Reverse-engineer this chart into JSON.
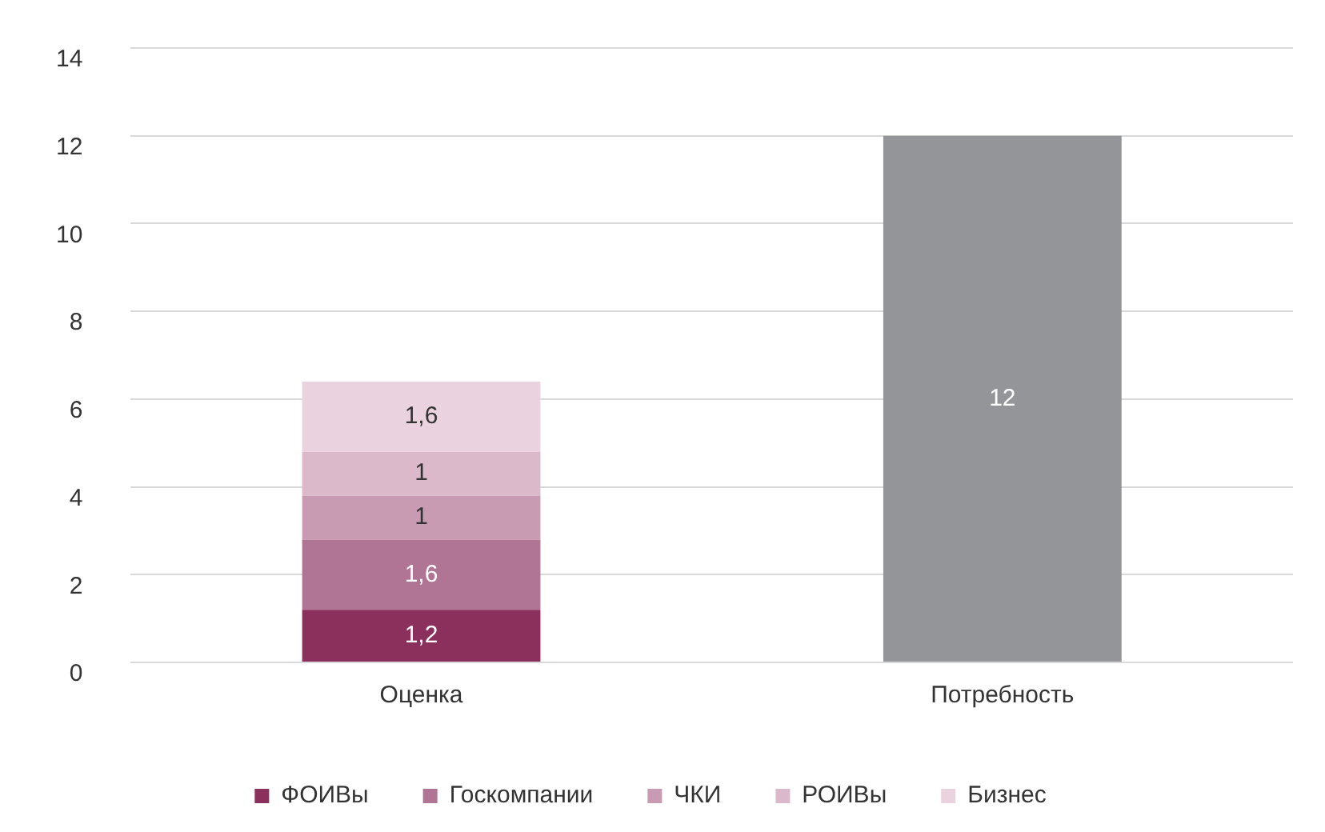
{
  "chart_data": {
    "type": "bar",
    "stacked": true,
    "categories": [
      "Оценка",
      "Потребность"
    ],
    "series": [
      {
        "name": "ФОИВы",
        "color": "#8b2f5c",
        "values": [
          1.2,
          null
        ],
        "value_labels": [
          "1,2",
          null
        ]
      },
      {
        "name": "Госкомпании",
        "color": "#b07494",
        "values": [
          1.6,
          null
        ],
        "value_labels": [
          "1,6",
          null
        ]
      },
      {
        "name": "ЧКИ",
        "color": "#c99bb3",
        "values": [
          1,
          null
        ],
        "value_labels": [
          "1",
          null
        ]
      },
      {
        "name": "РОИВы",
        "color": "#dbb9cb",
        "values": [
          1,
          null
        ],
        "value_labels": [
          "1",
          null
        ]
      },
      {
        "name": "Бизнес",
        "color": "#ead3de",
        "values": [
          1.6,
          null
        ],
        "value_labels": [
          "1,6",
          null
        ]
      },
      {
        "color": "#939598",
        "values": [
          null,
          12
        ],
        "value_labels": [
          null,
          "12"
        ]
      }
    ],
    "ylim": [
      0,
      14
    ],
    "yticks": [
      0,
      2,
      4,
      6,
      8,
      10,
      12,
      14
    ],
    "grid": "y",
    "legend": "bottom"
  }
}
